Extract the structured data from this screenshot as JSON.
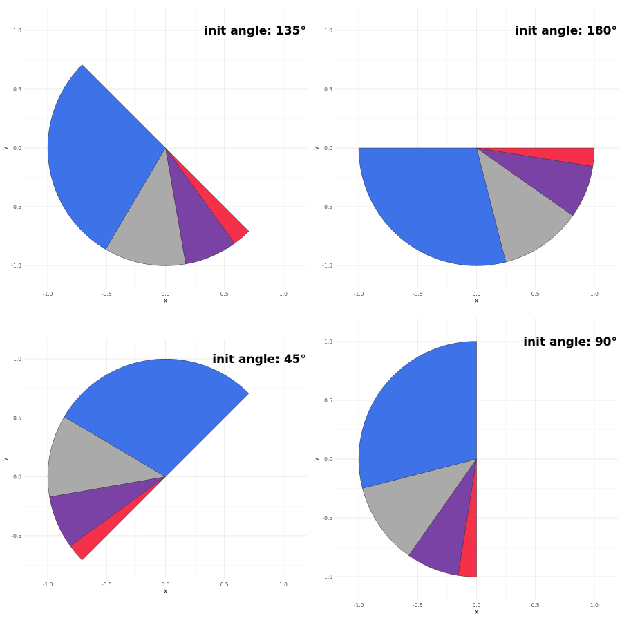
{
  "chart_data": [
    {
      "type": "pie",
      "title": "init angle: 135°",
      "init_angle": 135,
      "xlabel": "x",
      "ylabel": "y",
      "xlim": [
        -1.2,
        1.2
      ],
      "ylim": [
        -1.2,
        1.2
      ],
      "x_ticks": [
        "-1.0",
        "-0.5",
        "0.0",
        "0.5",
        "1.0"
      ],
      "y_ticks": [
        "-1.0",
        "-0.5",
        "0.0",
        "0.5",
        "1.0"
      ],
      "grid": true
    },
    {
      "type": "pie",
      "title": "init angle: 180°",
      "init_angle": 180,
      "xlabel": "x",
      "ylabel": "y",
      "xlim": [
        -1.2,
        1.2
      ],
      "ylim": [
        -1.2,
        1.2
      ],
      "x_ticks": [
        "-1.0",
        "-0.5",
        "0.0",
        "0.5",
        "1.0"
      ],
      "y_ticks": [
        "-1.0",
        "-0.5",
        "0.0",
        "0.5",
        "1.0"
      ],
      "grid": true
    },
    {
      "type": "pie",
      "title": "init angle: 45°",
      "init_angle": 45,
      "xlabel": "x",
      "ylabel": "y",
      "xlim": [
        -1.2,
        1.2
      ],
      "ylim": [
        -0.87,
        1.17
      ],
      "x_ticks": [
        "-1.0",
        "-0.5",
        "0.0",
        "0.5",
        "1.0"
      ],
      "y_ticks": [
        "-0.5",
        "0.0",
        "0.5",
        "1.0"
      ],
      "grid": true
    },
    {
      "type": "pie",
      "title": "init angle: 90°",
      "init_angle": 90,
      "xlabel": "x",
      "ylabel": "y",
      "xlim": [
        -1.2,
        1.2
      ],
      "ylim": [
        -1.2,
        1.2
      ],
      "x_ticks": [
        "-1.0",
        "-0.5",
        "0.0",
        "0.5",
        "1.0"
      ],
      "y_ticks": [
        "-1.0",
        "-0.5",
        "0.0",
        "0.5",
        "1.0"
      ],
      "grid": true
    }
  ],
  "slices": {
    "fractions_of_half_circle": [
      0.58,
      0.225,
      0.145,
      0.05
    ],
    "colors": [
      "#3d72e8",
      "#aaaaaa",
      "#7a42a5",
      "#f5304a"
    ],
    "direction": "counterclockwise",
    "outline_color": "#333333"
  }
}
